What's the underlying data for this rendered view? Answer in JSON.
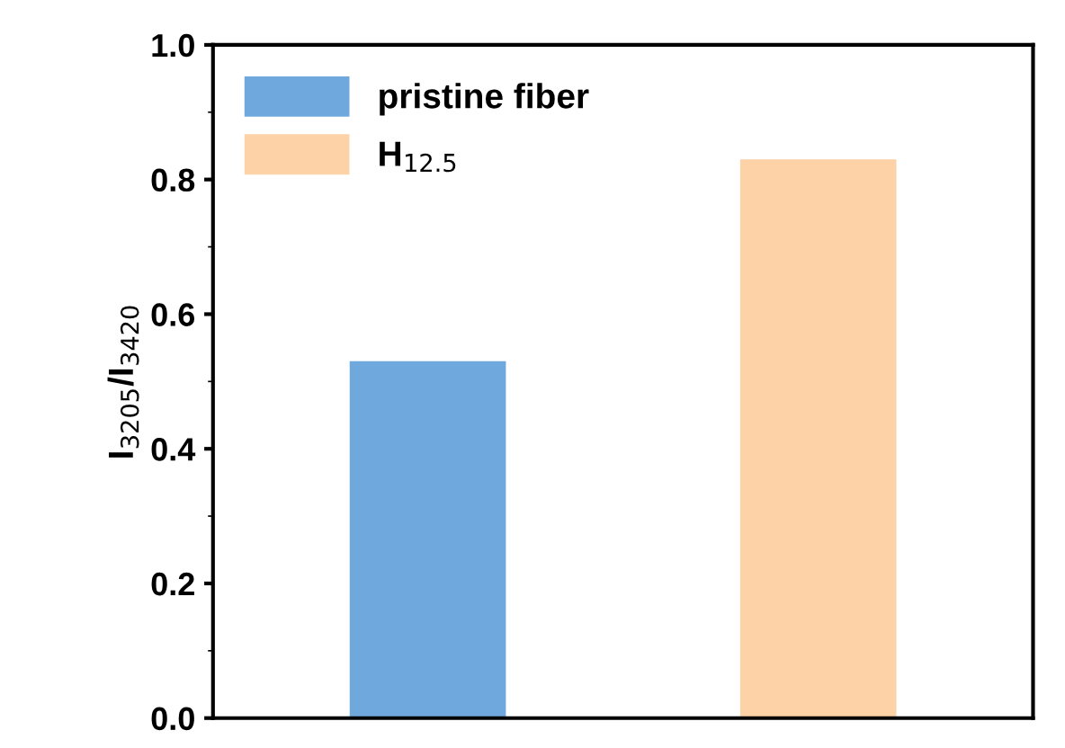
{
  "chart_data": {
    "type": "bar",
    "ylabel": "I$_{3205}$/I$_{3420}$",
    "categories": [
      null,
      null
    ],
    "series": [
      {
        "name": "pristine fiber",
        "color": "#6fa8dc",
        "values": [
          0.53,
          null
        ]
      },
      {
        "name": "H$_{12.5}$",
        "color": "#fcd2a6",
        "values": [
          null,
          0.83
        ]
      }
    ],
    "ylim": [
      0.0,
      1.0
    ],
    "yticks": [
      {
        "value": 0.0,
        "label": "0.0"
      },
      {
        "value": 0.2,
        "label": "0.2"
      },
      {
        "value": 0.4,
        "label": "0.4"
      },
      {
        "value": 0.6,
        "label": "0.6"
      },
      {
        "value": 0.8,
        "label": "0.8"
      },
      {
        "value": 1.0,
        "label": "1.0"
      }
    ],
    "tick_labels": "y",
    "grid": false,
    "legend": "top left"
  }
}
